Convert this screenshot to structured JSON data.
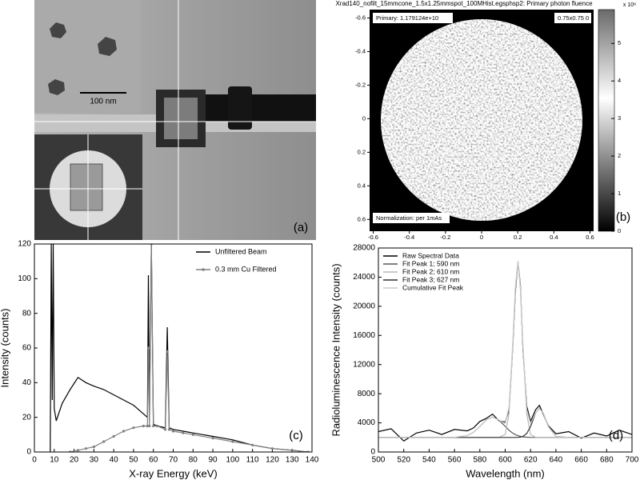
{
  "panel_a": {
    "scale_bar": "100 nm",
    "label": "(a)"
  },
  "panel_b": {
    "title": "Xrad140_nofilt_15mmcone_1.5x1.25mmspot_100MHist.egsphsp2: Primary photon fluence",
    "primary": "Primary: 1.179124e+10",
    "voxel": "0.75x0.75 0",
    "normalization": "Normalization: per 1mAs",
    "label": "(b)",
    "xlim": [
      -0.62,
      0.62
    ],
    "xticks": [
      -0.6,
      -0.4,
      -0.2,
      0,
      0.2,
      0.4,
      0.6
    ],
    "ylim": [
      -0.65,
      0.67
    ],
    "yticks": [
      -0.6,
      -0.4,
      -0.2,
      0,
      0.2,
      0.4,
      0.6
    ],
    "colorbar": {
      "lim": [
        0,
        5.9
      ],
      "ticks": [
        0,
        1,
        2,
        3,
        4,
        5
      ],
      "multiplier": "x 10⁸"
    }
  },
  "chart_data": [
    {
      "type": "line",
      "panel_label": "(c)",
      "xlabel": "X-ray Energy (keV)",
      "ylabel": "Intensity (counts)",
      "xlim": [
        0,
        140
      ],
      "xticks": [
        0,
        10,
        20,
        30,
        40,
        50,
        60,
        70,
        80,
        90,
        100,
        110,
        120,
        130,
        140
      ],
      "ylim": [
        0,
        120
      ],
      "yticks": [
        0,
        20,
        40,
        60,
        80,
        100,
        120
      ],
      "legend": "upper right",
      "x": [
        8,
        8.5,
        9,
        9.5,
        10,
        11,
        14,
        18,
        22,
        26,
        30,
        35,
        40,
        45,
        50,
        55,
        57,
        57.5,
        58,
        59,
        60,
        62,
        66,
        67,
        68,
        70,
        75,
        80,
        90,
        100,
        110,
        120,
        130,
        138
      ],
      "series": [
        {
          "name": "Unfiltered Beam",
          "color": "#000000",
          "values": [
            0,
            120,
            30,
            120,
            25,
            18,
            28,
            36,
            43,
            40,
            38,
            36,
            33,
            30,
            27,
            22,
            20,
            102,
            18,
            120,
            16,
            15,
            14,
            72,
            14,
            13,
            12,
            11,
            9,
            7,
            4,
            2,
            1,
            0
          ]
        },
        {
          "name": "0.3 mm Cu Filtered",
          "color": "#808080",
          "marker": "circle",
          "values": [
            null,
            null,
            null,
            null,
            null,
            null,
            null,
            0,
            1,
            2,
            3,
            6,
            9,
            12,
            14,
            15,
            15,
            60,
            15,
            120,
            15,
            15,
            13,
            58,
            13,
            12,
            11,
            10,
            8,
            6,
            4,
            2,
            1,
            0
          ]
        }
      ]
    },
    {
      "type": "line",
      "panel_label": "(d)",
      "xlabel": "Wavelength (nm)",
      "ylabel": "Radioluminescence Intensity (counts)",
      "xlim": [
        500,
        700
      ],
      "xticks": [
        500,
        520,
        540,
        560,
        580,
        600,
        620,
        640,
        660,
        680,
        700
      ],
      "ylim": [
        0,
        28000
      ],
      "yticks": [
        0,
        4000,
        8000,
        12000,
        16000,
        20000,
        24000,
        28000
      ],
      "legend": "upper left",
      "x": [
        500,
        510,
        520,
        530,
        540,
        550,
        560,
        570,
        575,
        580,
        585,
        590,
        595,
        600,
        603,
        606,
        608,
        610,
        612,
        614,
        617,
        620,
        624,
        627,
        630,
        634,
        640,
        650,
        660,
        670,
        680,
        690,
        700
      ],
      "series": [
        {
          "name": "Raw Spectral Data",
          "color": "#000000",
          "values": [
            2800,
            3200,
            1500,
            2600,
            3000,
            2400,
            3100,
            2900,
            3300,
            4200,
            4600,
            5200,
            4300,
            4100,
            5800,
            14500,
            22000,
            26100,
            22900,
            14100,
            6300,
            4200,
            5800,
            6400,
            5200,
            3600,
            2500,
            2800,
            1900,
            2600,
            2200,
            3000,
            2400
          ]
        },
        {
          "name": "Fit Peak 1; 590 nm",
          "color": "#555555",
          "values": [
            2000,
            2000,
            2000,
            2000,
            2000,
            2000,
            2010,
            2240,
            2700,
            3510,
            4400,
            4800,
            4400,
            3510,
            2990,
            2580,
            2380,
            2240,
            2140,
            2080,
            2030,
            2010,
            2000,
            2000,
            2000,
            2000,
            2000,
            2000,
            2000,
            2000,
            2000,
            2000,
            2000
          ]
        },
        {
          "name": "Fit Peak 2; 610 nm",
          "color": "#b8b8b8",
          "values": [
            2000,
            2000,
            2000,
            2000,
            2000,
            2000,
            2000,
            2000,
            2000,
            2000,
            2000,
            2000,
            2000,
            2400,
            5250,
            14480,
            22400,
            26000,
            22400,
            14480,
            5250,
            2400,
            2010,
            2000,
            2000,
            2000,
            2000,
            2000,
            2000,
            2000,
            2000,
            2000,
            2000
          ]
        },
        {
          "name": "Fit Peak 3; 627 nm",
          "color": "#333333",
          "values": [
            2000,
            2000,
            2000,
            2000,
            2000,
            2000,
            2000,
            2000,
            2000,
            2000,
            2000,
            2000,
            2000,
            2000,
            2000,
            2000,
            2000,
            2010,
            2040,
            2140,
            2540,
            3500,
            5340,
            6000,
            5340,
            3500,
            2140,
            2000,
            2000,
            2000,
            2000,
            2000,
            2000
          ]
        },
        {
          "name": "Cumulative Fit Peak",
          "color": "#cccccc",
          "values": [
            2000,
            2000,
            2000,
            2000,
            2000,
            2000,
            2010,
            2240,
            2700,
            3510,
            4400,
            4800,
            4400,
            3910,
            6240,
            15060,
            22780,
            26250,
            22580,
            14700,
            5820,
            3910,
            5350,
            6000,
            5340,
            3500,
            2140,
            2000,
            2000,
            2000,
            2000,
            2000,
            2000
          ]
        }
      ]
    }
  ]
}
